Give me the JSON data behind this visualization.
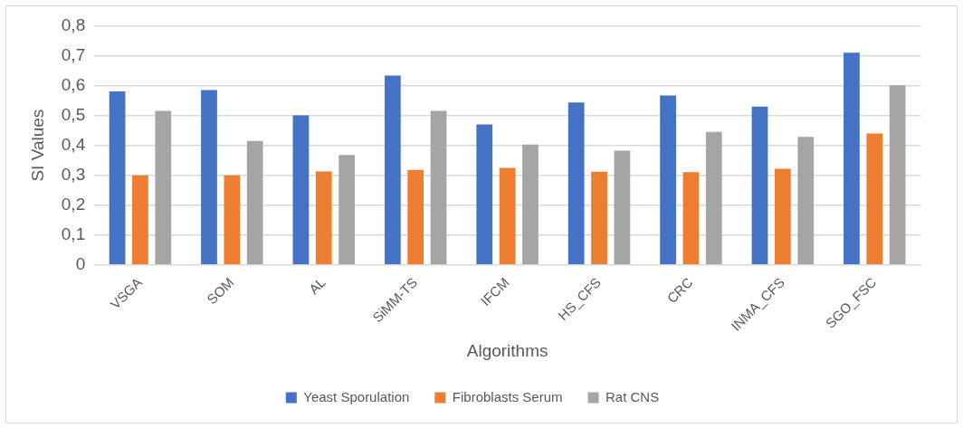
{
  "chart_data": {
    "type": "bar",
    "xlabel": "Algorithms",
    "ylabel": "SI Values",
    "categories": [
      "VSGA",
      "SOM",
      "AL",
      "SiMM-TS",
      "IFCM",
      "HS_CFS",
      "CRC",
      "INMA_CFS",
      "SGO_FSC"
    ],
    "series": [
      {
        "name": "Yeast Sporulation",
        "color": "#4472c4",
        "values": [
          0.58,
          0.585,
          0.5,
          0.633,
          0.47,
          0.543,
          0.567,
          0.53,
          0.71
        ]
      },
      {
        "name": "Fibroblasts Serum",
        "color": "#ed7d31",
        "values": [
          0.3,
          0.3,
          0.313,
          0.318,
          0.325,
          0.312,
          0.31,
          0.322,
          0.44
        ]
      },
      {
        "name": "Rat CNS",
        "color": "#a5a5a5",
        "values": [
          0.515,
          0.415,
          0.368,
          0.515,
          0.403,
          0.382,
          0.445,
          0.428,
          0.601
        ]
      }
    ],
    "ylim": [
      0,
      0.8
    ],
    "yticks": [
      {
        "value": 0,
        "label": "0"
      },
      {
        "value": 0.1,
        "label": "0,1"
      },
      {
        "value": 0.2,
        "label": "0,2"
      },
      {
        "value": 0.3,
        "label": "0,3"
      },
      {
        "value": 0.4,
        "label": "0,4"
      },
      {
        "value": 0.5,
        "label": "0,5"
      },
      {
        "value": 0.6,
        "label": "0,6"
      },
      {
        "value": 0.7,
        "label": "0,7"
      },
      {
        "value": 0.8,
        "label": "0,8"
      }
    ],
    "grid": "y",
    "legend": "bottom"
  }
}
